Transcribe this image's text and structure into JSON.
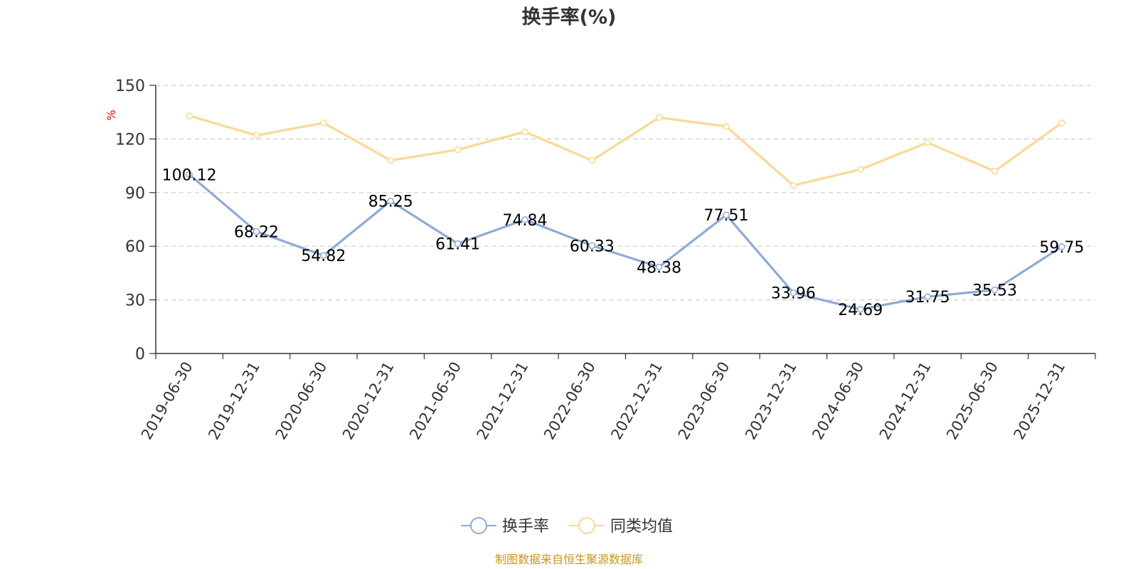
{
  "chart_data": {
    "type": "line",
    "title": "换手率(%)",
    "ylabel": "%",
    "xlabel": "",
    "ylim": [
      0,
      150
    ],
    "yticks": [
      0,
      30,
      60,
      90,
      120,
      150
    ],
    "grid": true,
    "categories": [
      "2019-06-30",
      "2019-12-31",
      "2020-06-30",
      "2020-12-31",
      "2021-06-30",
      "2021-12-31",
      "2022-06-30",
      "2022-12-31",
      "2023-06-30",
      "2023-12-31",
      "2024-06-30",
      "2024-12-31",
      "2025-06-30",
      "2025-12-31"
    ],
    "series": [
      {
        "name": "换手率",
        "color": "#8eaad6",
        "show_labels": true,
        "values": [
          100.12,
          68.22,
          54.82,
          85.25,
          61.41,
          74.84,
          60.33,
          48.38,
          77.51,
          33.96,
          24.69,
          31.75,
          35.53,
          59.75
        ],
        "labels": [
          "100.12",
          "68.22",
          "54.82",
          "85.25",
          "61.41",
          "74.84",
          "60.33",
          "48.38",
          "77.51",
          "33.96",
          "24.69",
          "31.75",
          "35.53",
          "59.75"
        ]
      },
      {
        "name": "同类均值",
        "color": "#fbd896",
        "show_labels": false,
        "values": [
          133,
          122,
          129,
          108,
          114,
          124,
          108,
          132,
          127,
          94,
          103,
          118,
          102,
          129
        ]
      }
    ],
    "legend_position": "bottom-center",
    "source": "制图数据来自恒生聚源数据库"
  }
}
